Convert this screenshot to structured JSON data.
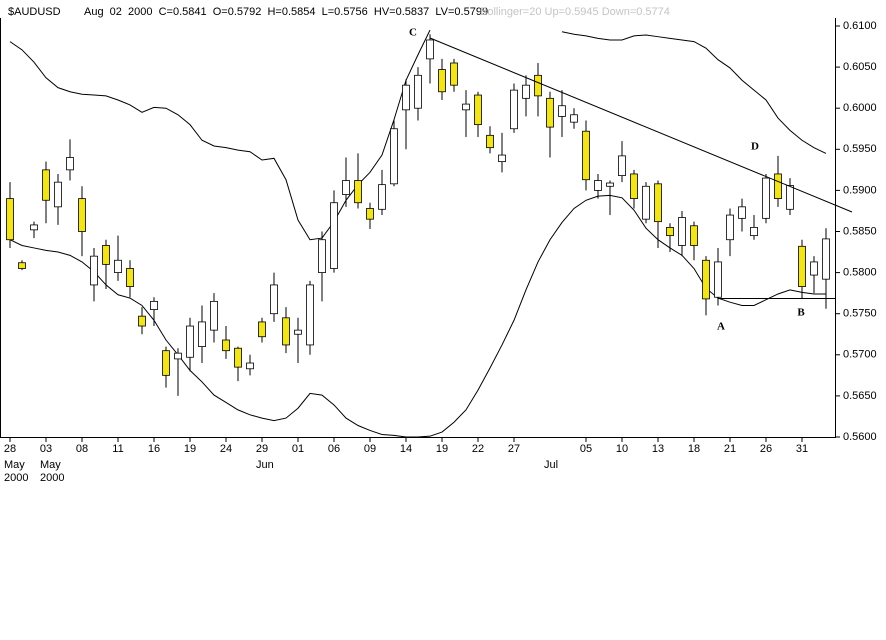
{
  "chart_data": {
    "type": "candlestick",
    "title": "$AUDUSD",
    "subtitle": "Aug  02  2000  C=0.5841  O=0.5792  H=0.5854  L=0.5756  HV=0.5837  LV=0.5799",
    "study": "Bollinger=20 Up=0.5945 Down=0.5774",
    "categories": [
      "28",
      null,
      null,
      "03",
      null,
      null,
      "08",
      null,
      null,
      "11",
      null,
      null,
      "16",
      null,
      null,
      "19",
      null,
      null,
      "24",
      null,
      null,
      "29",
      null,
      null,
      "01",
      null,
      null,
      "06",
      null,
      null,
      "09",
      null,
      null,
      "14",
      null,
      null,
      "19",
      null,
      null,
      "22",
      null,
      null,
      "27",
      null,
      null,
      null,
      null,
      null,
      "05",
      null,
      null,
      "10",
      null,
      null,
      "13",
      null,
      null,
      "18",
      null,
      null,
      "21",
      null,
      null,
      "26",
      null,
      null,
      "31",
      null,
      null
    ],
    "months": [
      "May",
      null,
      null,
      "May",
      null,
      null,
      null,
      null,
      null,
      null,
      null,
      null,
      null,
      null,
      null,
      null,
      null,
      null,
      null,
      null,
      null,
      "Jun",
      null,
      null,
      null,
      null,
      null,
      null,
      null,
      null,
      null,
      null,
      null,
      null,
      null,
      null,
      null,
      null,
      null,
      null,
      null,
      null,
      null,
      null,
      null,
      "Jul",
      null,
      null,
      null,
      null,
      null,
      null,
      null,
      null,
      null,
      null,
      null,
      null,
      null,
      null,
      null,
      null,
      null,
      null,
      null,
      null,
      null,
      null,
      null
    ],
    "years": [
      "2000",
      null,
      null,
      "2000",
      null,
      null,
      null,
      null,
      null,
      null,
      null,
      null,
      null,
      null,
      null,
      null,
      null,
      null,
      null,
      null,
      null,
      null,
      null,
      null,
      null,
      null,
      null,
      null,
      null,
      null,
      null,
      null,
      null,
      null,
      null,
      null,
      null,
      null,
      null,
      null,
      null,
      null,
      null,
      null,
      null,
      null,
      null,
      null,
      null,
      null,
      null,
      null,
      null,
      null,
      null,
      null,
      null,
      null,
      null,
      null,
      null,
      null,
      null,
      null,
      null,
      null,
      null,
      null,
      null
    ],
    "open": [
      0.589,
      0.5812,
      0.5852,
      0.5925,
      0.588,
      0.5925,
      0.589,
      0.5785,
      0.5833,
      0.58,
      0.5805,
      0.5747,
      0.5755,
      0.5705,
      0.5695,
      0.5697,
      0.571,
      0.573,
      0.5718,
      0.5708,
      0.5683,
      0.574,
      0.575,
      0.5745,
      0.5725,
      0.5712,
      0.58,
      0.5805,
      0.5895,
      0.5912,
      0.5878,
      0.5877,
      0.5908,
      0.5998,
      0.6,
      0.606,
      0.6047,
      0.6055,
      0.5998,
      0.6016,
      0.5967,
      0.5935,
      0.5975,
      0.6012,
      0.604,
      0.6012,
      0.599,
      0.5983,
      0.5972,
      0.59,
      0.5905,
      0.5918,
      0.592,
      0.5865,
      0.5908,
      0.5855,
      0.5833,
      0.5857,
      0.5815,
      0.577,
      0.584,
      0.5866,
      0.5845,
      0.5866,
      0.592,
      0.5877,
      0.5832,
      0.5797,
      0.5792
    ],
    "high": [
      0.591,
      0.5815,
      0.5862,
      0.5935,
      0.592,
      0.5962,
      0.5905,
      0.583,
      0.584,
      0.5845,
      0.5815,
      0.5758,
      0.577,
      0.571,
      0.5708,
      0.5745,
      0.576,
      0.5775,
      0.5735,
      0.571,
      0.57,
      0.5745,
      0.58,
      0.5758,
      0.5745,
      0.579,
      0.585,
      0.59,
      0.594,
      0.5945,
      0.5885,
      0.5925,
      0.5985,
      0.6035,
      0.605,
      0.609,
      0.606,
      0.606,
      0.6022,
      0.602,
      0.5978,
      0.597,
      0.603,
      0.604,
      0.6055,
      0.602,
      0.6022,
      0.6,
      0.5985,
      0.592,
      0.5912,
      0.596,
      0.5925,
      0.591,
      0.5912,
      0.586,
      0.5875,
      0.5862,
      0.582,
      0.583,
      0.5878,
      0.589,
      0.587,
      0.592,
      0.5942,
      0.5915,
      0.584,
      0.582,
      0.5854
    ],
    "low": [
      0.583,
      0.5803,
      0.5842,
      0.586,
      0.5858,
      0.5912,
      0.582,
      0.5765,
      0.578,
      0.579,
      0.577,
      0.5725,
      0.5735,
      0.566,
      0.565,
      0.568,
      0.569,
      0.5715,
      0.5695,
      0.5668,
      0.5675,
      0.5715,
      0.574,
      0.5702,
      0.569,
      0.57,
      0.5765,
      0.58,
      0.588,
      0.5878,
      0.5853,
      0.587,
      0.5905,
      0.595,
      0.5985,
      0.603,
      0.601,
      0.602,
      0.5965,
      0.5965,
      0.5945,
      0.5922,
      0.597,
      0.599,
      0.599,
      0.594,
      0.5965,
      0.5975,
      0.59,
      0.589,
      0.587,
      0.591,
      0.5878,
      0.586,
      0.583,
      0.5825,
      0.582,
      0.5815,
      0.5748,
      0.576,
      0.582,
      0.585,
      0.584,
      0.586,
      0.588,
      0.587,
      0.5768,
      0.5775,
      0.5756
    ],
    "close": [
      0.584,
      0.5805,
      0.5858,
      0.5888,
      0.591,
      0.594,
      0.585,
      0.582,
      0.581,
      0.5815,
      0.5783,
      0.5735,
      0.5765,
      0.5675,
      0.5702,
      0.5735,
      0.574,
      0.5765,
      0.5705,
      0.5685,
      0.569,
      0.5722,
      0.5785,
      0.5712,
      0.573,
      0.5785,
      0.584,
      0.5885,
      0.5912,
      0.5885,
      0.5865,
      0.5907,
      0.5975,
      0.6028,
      0.604,
      0.6083,
      0.602,
      0.6028,
      0.6005,
      0.598,
      0.5952,
      0.5943,
      0.6022,
      0.6028,
      0.6015,
      0.5977,
      0.6003,
      0.5992,
      0.5913,
      0.5912,
      0.5909,
      0.5942,
      0.589,
      0.5905,
      0.5862,
      0.5845,
      0.5867,
      0.5833,
      0.5768,
      0.5813,
      0.587,
      0.588,
      0.5855,
      0.5915,
      0.589,
      0.5906,
      0.5783,
      0.5813,
      0.5841
    ],
    "up_color": "#ffffff",
    "down_color": "#f2e41c",
    "bands": [
      {
        "color": "#000000",
        "values": [
          0.6081,
          0.6071,
          0.6056,
          0.6037,
          0.6025,
          0.602,
          0.6017,
          0.6016,
          0.6015,
          0.601,
          0.6004,
          0.5995,
          0.6001,
          0.6,
          0.5992,
          0.598,
          0.5961,
          0.5954,
          0.5952,
          0.5949,
          0.5947,
          0.5937,
          0.5939,
          0.5913,
          0.5864,
          0.584,
          0.5842,
          0.5862,
          0.5888,
          0.5907,
          0.5922,
          0.5943,
          0.5986,
          0.6034,
          0.6065,
          0.6095,
          null,
          null,
          null,
          null,
          null,
          null,
          null,
          null,
          null,
          null,
          0.6093,
          0.609,
          0.6088,
          0.6085,
          0.6083,
          0.6083,
          0.6088,
          0.6089,
          0.6087,
          0.6085,
          0.6083,
          0.6081,
          0.6073,
          0.6059,
          0.6049,
          0.6034,
          0.6022,
          0.601,
          0.5988,
          0.5973,
          0.5961,
          0.5952,
          0.5945
        ]
      },
      {
        "color": "#000000",
        "values": [
          0.584,
          0.5833,
          0.583,
          0.5827,
          0.5825,
          0.5821,
          0.5813,
          0.5801,
          0.5785,
          0.5773,
          0.5769,
          0.576,
          0.5742,
          0.5718,
          0.57,
          0.5681,
          0.5667,
          0.5651,
          0.5642,
          0.5633,
          0.5627,
          0.5623,
          0.562,
          0.5623,
          0.5635,
          0.5653,
          0.5651,
          0.5639,
          0.5623,
          0.5614,
          0.5608,
          0.5603,
          0.5602,
          0.56,
          0.56,
          0.5601,
          0.5606,
          0.5618,
          0.5633,
          0.5657,
          0.5684,
          0.5712,
          0.5742,
          0.5779,
          0.5813,
          0.584,
          0.5861,
          0.5878,
          0.5888,
          0.5893,
          0.5894,
          0.5891,
          0.5876,
          0.5854,
          0.584,
          0.583,
          0.5821,
          0.5805,
          0.5781,
          0.5769,
          0.5764,
          0.576,
          0.576,
          0.5767,
          0.5774,
          0.5779,
          0.5776,
          0.5774,
          0.5774
        ]
      }
    ],
    "annotations": [
      "C",
      "D",
      "A",
      "B"
    ],
    "ylim": [
      0.56,
      0.61
    ],
    "yticks": [
      {
        "value": 0.61,
        "label": "0.6100"
      },
      {
        "value": 0.605,
        "label": "0.6050"
      },
      {
        "value": 0.6,
        "label": "0.6000"
      },
      {
        "value": 0.595,
        "label": "0.5950"
      },
      {
        "value": 0.59,
        "label": "0.5900"
      },
      {
        "value": 0.585,
        "label": "0.5850"
      },
      {
        "value": 0.58,
        "label": "0.5800"
      },
      {
        "value": 0.575,
        "label": "0.5750"
      },
      {
        "value": 0.57,
        "label": "0.5700"
      },
      {
        "value": 0.565,
        "label": "0.5650"
      },
      {
        "value": 0.56,
        "label": "0.5600"
      }
    ],
    "grid": false
  }
}
